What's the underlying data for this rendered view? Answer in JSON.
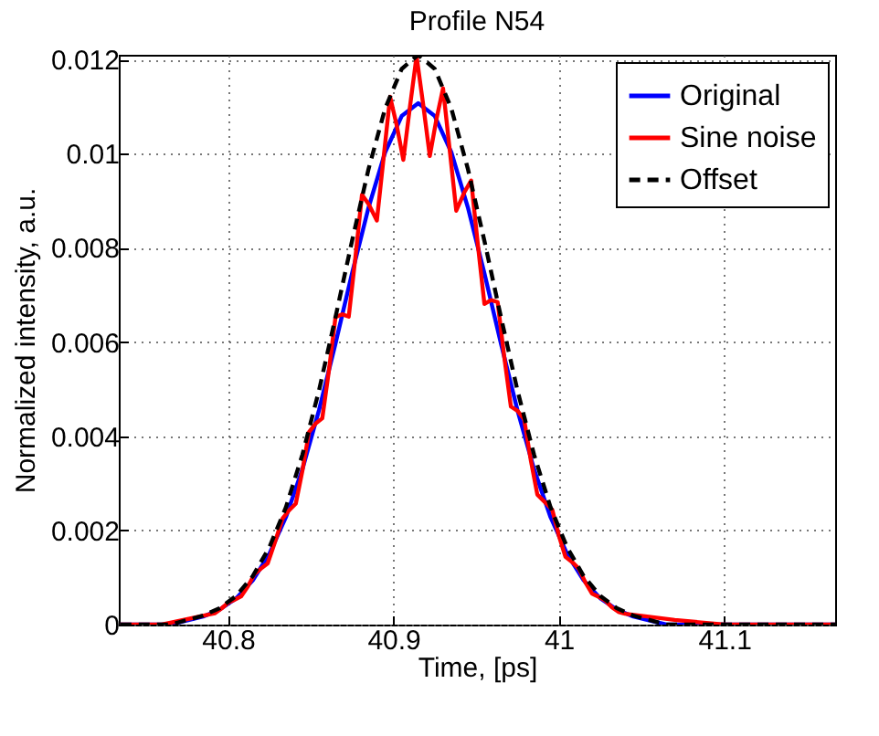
{
  "chart_data": {
    "type": "line",
    "title": "Profile N54",
    "xlabel": "Time, [ps]",
    "ylabel": "Normalized intensity, a.u.",
    "xlim": [
      40.734,
      41.167
    ],
    "ylim": [
      0,
      0.0121
    ],
    "xticks": [
      40.8,
      40.9,
      41,
      41.1
    ],
    "yticks": [
      0,
      0.002,
      0.004,
      0.006,
      0.008,
      0.01,
      0.012
    ],
    "grid": true,
    "legend": "top right",
    "series": [
      {
        "name": "Original",
        "color": "#0000ff",
        "line_style": "solid",
        "x": [
          40.735,
          40.765,
          40.785,
          40.795,
          40.805,
          40.815,
          40.825,
          40.835,
          40.845,
          40.855,
          40.865,
          40.875,
          40.885,
          40.895,
          40.905,
          40.915,
          40.925,
          40.935,
          40.945,
          40.955,
          40.965,
          40.975,
          40.985,
          40.995,
          41.005,
          41.015,
          41.025,
          41.035,
          41.045,
          41.065,
          41.095,
          41.167
        ],
        "values": [
          0,
          0,
          0.00017,
          0.00032,
          0.00056,
          0.00094,
          0.0015,
          0.00228,
          0.0033,
          0.00455,
          0.00597,
          0.00746,
          0.00886,
          0.01003,
          0.0108,
          0.01107,
          0.0108,
          0.01003,
          0.00886,
          0.00746,
          0.00597,
          0.00455,
          0.0033,
          0.00228,
          0.0015,
          0.00094,
          0.00056,
          0.00032,
          0.00017,
          0,
          0,
          0
        ]
      },
      {
        "name": "Sine noise",
        "color": "#ff0000",
        "line_style": "solid",
        "x": [
          40.735,
          40.76,
          40.788,
          40.792,
          40.796,
          40.8,
          40.804,
          40.808,
          40.812,
          40.816,
          40.82,
          40.824,
          40.828,
          40.833,
          40.837,
          40.841,
          40.845,
          40.849,
          40.853,
          40.857,
          40.861,
          40.865,
          40.869,
          40.873,
          40.877,
          40.881,
          40.885,
          40.89,
          40.894,
          40.898,
          40.902,
          40.906,
          40.91,
          40.914,
          40.918,
          40.922,
          40.926,
          40.93,
          40.934,
          40.938,
          40.943,
          40.947,
          40.951,
          40.955,
          40.959,
          40.963,
          40.967,
          40.971,
          40.975,
          40.979,
          40.983,
          40.987,
          40.991,
          40.996,
          41,
          41.004,
          41.008,
          41.012,
          41.016,
          41.02,
          41.024,
          41.028,
          41.032,
          41.036,
          41.04,
          41.07,
          41.1,
          41.167
        ],
        "values": [
          0,
          0,
          0.00021,
          0.00024,
          0.00034,
          0.00046,
          0.00053,
          0.0006,
          0.00081,
          0.00107,
          0.00119,
          0.0013,
          0.00171,
          0.00225,
          0.00243,
          0.00257,
          0.00327,
          0.00409,
          0.00427,
          0.00438,
          0.00539,
          0.00653,
          0.00659,
          0.00654,
          0.00779,
          0.00913,
          0.00893,
          0.00858,
          0.00989,
          0.01121,
          0.0106,
          0.00987,
          0.011,
          0.01207,
          0.01104,
          0.00995,
          0.01073,
          0.01139,
          0.01009,
          0.00879,
          0.00919,
          0.00943,
          0.00808,
          0.00681,
          0.00689,
          0.00685,
          0.00568,
          0.00463,
          0.00454,
          0.00436,
          0.0035,
          0.00276,
          0.00262,
          0.00244,
          0.00189,
          0.00144,
          0.00133,
          0.00119,
          0.0009,
          0.00066,
          0.00059,
          0.00051,
          0.00037,
          0.00027,
          0.00023,
          0.0001,
          0,
          0
        ]
      },
      {
        "name": "Offset",
        "color": "#000000",
        "line_style": "dashed",
        "x": [
          40.735,
          40.765,
          40.785,
          40.795,
          40.805,
          40.815,
          40.825,
          40.835,
          40.845,
          40.855,
          40.865,
          40.875,
          40.885,
          40.895,
          40.905,
          40.915,
          40.925,
          40.935,
          40.945,
          40.955,
          40.965,
          40.975,
          40.985,
          40.995,
          41.005,
          41.015,
          41.025,
          41.035,
          41.045,
          41.065,
          41.095,
          41.167
        ],
        "values": [
          0,
          0,
          0.00019,
          0.00035,
          0.00061,
          0.00103,
          0.00164,
          0.00249,
          0.00361,
          0.00497,
          0.00653,
          0.00815,
          0.00968,
          0.01096,
          0.0118,
          0.0121,
          0.0118,
          0.01096,
          0.00968,
          0.00815,
          0.00653,
          0.00497,
          0.00361,
          0.00249,
          0.00164,
          0.00103,
          0.00061,
          0.00035,
          0.00019,
          0,
          0,
          0
        ]
      }
    ]
  }
}
